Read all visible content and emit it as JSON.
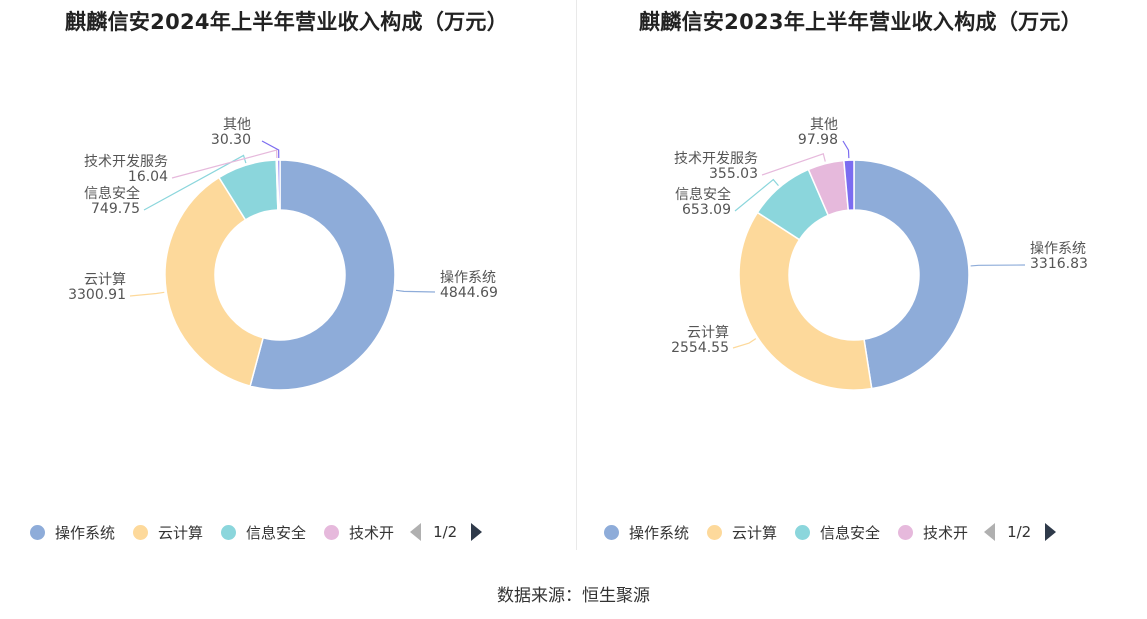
{
  "charts": {
    "left": {
      "title": "麒麟信安2024年上半年营业收入构成（万元）"
    },
    "right": {
      "title": "麒麟信安2023年上半年营业收入构成（万元）"
    }
  },
  "legend": {
    "items": [
      {
        "label": "操作系统",
        "color": "#8eacd9"
      },
      {
        "label": "云计算",
        "color": "#fdd99b"
      },
      {
        "label": "信息安全",
        "color": "#8bd6dc"
      },
      {
        "label": "技术开",
        "color": "#e6b9dc"
      }
    ],
    "page": "1/2"
  },
  "source": "数据来源：恒生聚源",
  "chart_data": [
    {
      "type": "pie",
      "title": "麒麟信安2024年上半年营业收入构成（万元）",
      "categories": [
        "操作系统",
        "云计算",
        "信息安全",
        "技术开发服务",
        "其他"
      ],
      "values": [
        4844.69,
        3300.91,
        749.75,
        16.04,
        30.3
      ],
      "value_labels": [
        "4844.69",
        "3300.91",
        "749.75",
        "16.04",
        "30.30"
      ],
      "colors": [
        "#8eacd9",
        "#fdd99b",
        "#8bd6dc",
        "#e6b9dc",
        "#7b6cf0"
      ],
      "donut": true,
      "legend_position": "bottom"
    },
    {
      "type": "pie",
      "title": "麒麟信安2023年上半年营业收入构成（万元）",
      "categories": [
        "操作系统",
        "云计算",
        "信息安全",
        "技术开发服务",
        "其他"
      ],
      "values": [
        3316.83,
        2554.55,
        653.09,
        355.03,
        97.98
      ],
      "value_labels": [
        "3316.83",
        "2554.55",
        "653.09",
        "355.03",
        "97.98"
      ],
      "colors": [
        "#8eacd9",
        "#fdd99b",
        "#8bd6dc",
        "#e6b9dc",
        "#7b6cf0"
      ],
      "donut": true,
      "legend_position": "bottom"
    }
  ]
}
